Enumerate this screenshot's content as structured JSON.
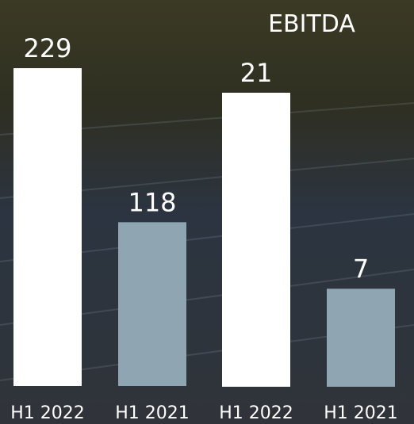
{
  "chart_data": [
    {
      "type": "bar",
      "categories": [
        "H1 2022",
        "H1 2021"
      ],
      "values": [
        229,
        118
      ],
      "colors": [
        "#ffffff",
        "#8fa6b2"
      ]
    },
    {
      "type": "bar",
      "title": "EBITDA",
      "categories": [
        "H1 2022",
        "H1 2021"
      ],
      "values": [
        21,
        7
      ],
      "colors": [
        "#ffffff",
        "#8fa6b2"
      ]
    }
  ]
}
